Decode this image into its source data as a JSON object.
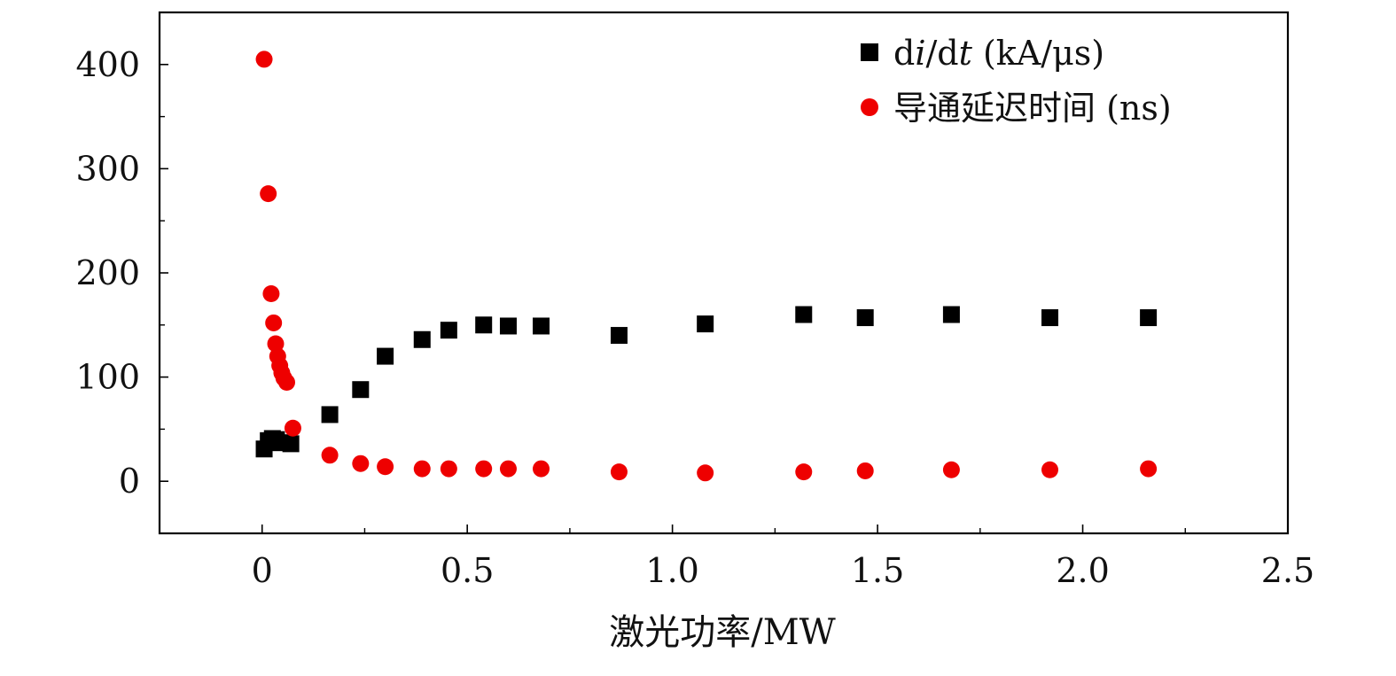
{
  "chart_data": {
    "type": "scatter",
    "title": "",
    "xlabel": "激光功率/MW",
    "ylabel": "",
    "xlim": [
      -0.25,
      2.5
    ],
    "ylim": [
      -50,
      450
    ],
    "x_ticks": [
      {
        "value": 0,
        "label": "0"
      },
      {
        "value": 0.5,
        "label": "0.5"
      },
      {
        "value": 1.0,
        "label": "1.0"
      },
      {
        "value": 1.5,
        "label": "1.5"
      },
      {
        "value": 2.0,
        "label": "2.0"
      },
      {
        "value": 2.5,
        "label": "2.5"
      }
    ],
    "x_minor_ticks": [
      -0.25,
      0.25,
      0.75,
      1.25,
      1.75,
      2.25
    ],
    "y_ticks": [
      {
        "value": 0,
        "label": "0"
      },
      {
        "value": 100,
        "label": "100"
      },
      {
        "value": 200,
        "label": "200"
      },
      {
        "value": 300,
        "label": "300"
      },
      {
        "value": 400,
        "label": "400"
      }
    ],
    "y_minor_ticks": [
      -50,
      50,
      150,
      250,
      350
    ],
    "legend_position": "top-right",
    "series": [
      {
        "name": "di/dt (kA/μs)",
        "legend_label": {
          "a": "d",
          "b": "i",
          "c": "/d",
          "d": "t",
          "e": " (kA/μs)"
        },
        "marker": "square",
        "color": "#000000",
        "points": [
          {
            "x": 0.005,
            "y": 31
          },
          {
            "x": 0.015,
            "y": 39
          },
          {
            "x": 0.025,
            "y": 41
          },
          {
            "x": 0.035,
            "y": 40
          },
          {
            "x": 0.045,
            "y": 37
          },
          {
            "x": 0.07,
            "y": 36
          },
          {
            "x": 0.165,
            "y": 64
          },
          {
            "x": 0.24,
            "y": 88
          },
          {
            "x": 0.3,
            "y": 120
          },
          {
            "x": 0.39,
            "y": 136
          },
          {
            "x": 0.455,
            "y": 145
          },
          {
            "x": 0.54,
            "y": 150
          },
          {
            "x": 0.6,
            "y": 149
          },
          {
            "x": 0.68,
            "y": 149
          },
          {
            "x": 0.87,
            "y": 140
          },
          {
            "x": 1.08,
            "y": 151
          },
          {
            "x": 1.32,
            "y": 160
          },
          {
            "x": 1.47,
            "y": 157
          },
          {
            "x": 1.68,
            "y": 160
          },
          {
            "x": 1.92,
            "y": 157
          },
          {
            "x": 2.16,
            "y": 157
          }
        ]
      },
      {
        "name": "导通延迟时间 (ns)",
        "legend_label": {
          "a": "导通延迟时间 (ns)"
        },
        "marker": "circle",
        "color": "#ee0000",
        "points": [
          {
            "x": 0.005,
            "y": 405
          },
          {
            "x": 0.015,
            "y": 276
          },
          {
            "x": 0.022,
            "y": 180
          },
          {
            "x": 0.028,
            "y": 152
          },
          {
            "x": 0.033,
            "y": 132
          },
          {
            "x": 0.038,
            "y": 120
          },
          {
            "x": 0.043,
            "y": 111
          },
          {
            "x": 0.048,
            "y": 104
          },
          {
            "x": 0.053,
            "y": 99
          },
          {
            "x": 0.06,
            "y": 95
          },
          {
            "x": 0.075,
            "y": 51
          },
          {
            "x": 0.165,
            "y": 25
          },
          {
            "x": 0.24,
            "y": 17
          },
          {
            "x": 0.3,
            "y": 14
          },
          {
            "x": 0.39,
            "y": 12
          },
          {
            "x": 0.455,
            "y": 12
          },
          {
            "x": 0.54,
            "y": 12
          },
          {
            "x": 0.6,
            "y": 12
          },
          {
            "x": 0.68,
            "y": 12
          },
          {
            "x": 0.87,
            "y": 9
          },
          {
            "x": 1.08,
            "y": 8
          },
          {
            "x": 1.32,
            "y": 9
          },
          {
            "x": 1.47,
            "y": 10
          },
          {
            "x": 1.68,
            "y": 11
          },
          {
            "x": 1.92,
            "y": 11
          },
          {
            "x": 2.16,
            "y": 12
          }
        ]
      }
    ]
  }
}
